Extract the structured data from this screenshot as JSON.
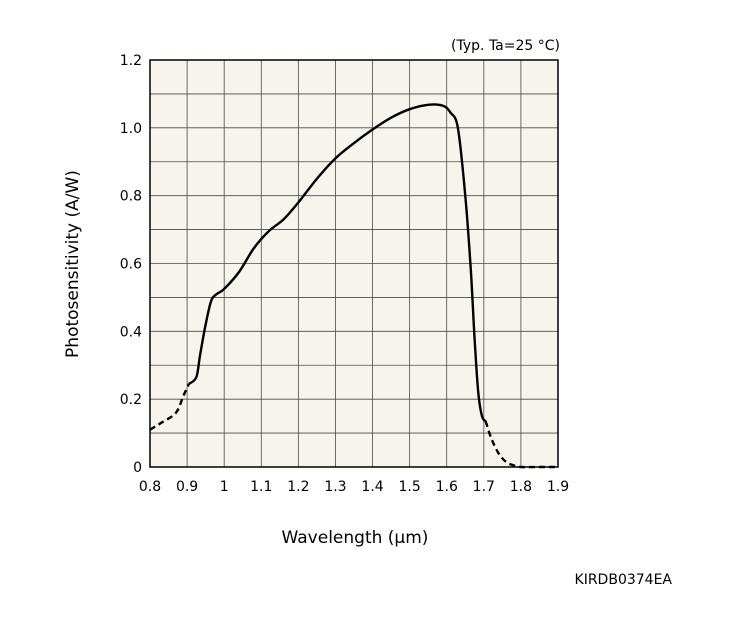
{
  "chart_data": {
    "type": "line",
    "title": "",
    "annotation": "(Typ. Ta=25 °C)",
    "xlabel": "Wavelength (µm)",
    "ylabel": "Photosensitivity (A/W)",
    "xlim": [
      0.8,
      1.9
    ],
    "ylim": [
      0,
      1.2
    ],
    "x_ticks": [
      0.8,
      0.9,
      1.0,
      1.1,
      1.2,
      1.3,
      1.4,
      1.5,
      1.6,
      1.7,
      1.8,
      1.9
    ],
    "x_tick_labels": [
      "0.8",
      "0.9",
      "1",
      "1.1",
      "1.2",
      "1.3",
      "1.4",
      "1.5",
      "1.6",
      "1.7",
      "1.8",
      "1.9"
    ],
    "y_ticks": [
      0,
      0.2,
      0.4,
      0.6,
      0.8,
      1.0,
      1.2
    ],
    "y_tick_labels": [
      "0",
      "0.2",
      "0.4",
      "0.6",
      "0.8",
      "1.0",
      "1.2"
    ],
    "grid": true,
    "grid_minor_x": 0.1,
    "grid_minor_y": 0.1,
    "background": "#f7f4ec",
    "line_color": "#000000",
    "series": [
      {
        "style": "dashed",
        "x": [
          0.8,
          0.83,
          0.87,
          0.89,
          0.905
        ],
        "y": [
          0.11,
          0.13,
          0.16,
          0.21,
          0.245
        ]
      },
      {
        "style": "solid",
        "x": [
          0.905,
          0.925,
          0.935,
          0.95,
          0.965,
          0.98,
          1.0,
          1.04,
          1.08,
          1.12,
          1.16,
          1.2,
          1.25,
          1.3,
          1.35,
          1.4,
          1.45,
          1.5,
          1.55,
          1.59,
          1.61,
          1.63,
          1.65,
          1.665,
          1.675,
          1.685,
          1.695,
          1.705
        ],
        "y": [
          0.245,
          0.265,
          0.33,
          0.42,
          0.49,
          0.51,
          0.525,
          0.575,
          0.645,
          0.695,
          0.73,
          0.78,
          0.85,
          0.91,
          0.955,
          0.995,
          1.03,
          1.055,
          1.068,
          1.065,
          1.045,
          1.0,
          0.8,
          0.58,
          0.38,
          0.22,
          0.15,
          0.135
        ]
      },
      {
        "style": "dashed",
        "x": [
          1.705,
          1.72,
          1.74,
          1.76,
          1.78,
          1.8,
          1.85,
          1.9
        ],
        "y": [
          0.135,
          0.085,
          0.04,
          0.015,
          0.005,
          0.0,
          0.0,
          0.0
        ]
      }
    ]
  },
  "figure_code": "KIRDB0374EA"
}
